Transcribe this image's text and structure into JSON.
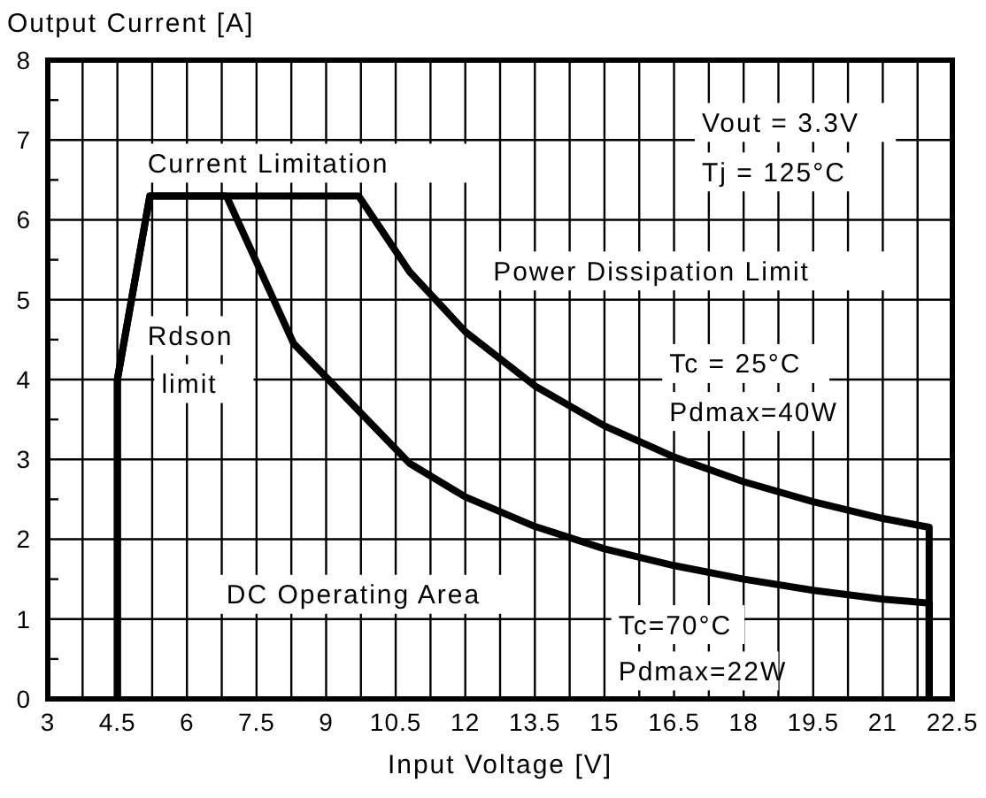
{
  "chart_data": {
    "type": "line",
    "title": "Output Current [A]",
    "xlabel": "Input Voltage [V]",
    "xlim": [
      3,
      22.5
    ],
    "ylim": [
      0,
      8
    ],
    "xticks": [
      3,
      {
        "value": 3.75,
        "label": null
      },
      4.5,
      {
        "value": 5.25,
        "label": null
      },
      6,
      {
        "value": 6.75,
        "label": null
      },
      7.5,
      {
        "value": 8.25,
        "label": null
      },
      9,
      {
        "value": 9.75,
        "label": null
      },
      10.5,
      {
        "value": 11.25,
        "label": null
      },
      12,
      {
        "value": 12.75,
        "label": null
      },
      13.5,
      {
        "value": 14.25,
        "label": null
      },
      15,
      {
        "value": 15.75,
        "label": null
      },
      16.5,
      {
        "value": 17.25,
        "label": null
      },
      18,
      {
        "value": 18.75,
        "label": null
      },
      19.5,
      {
        "value": 20.25,
        "label": null
      },
      21,
      {
        "value": 21.75,
        "label": null
      },
      22.5
    ],
    "yticks": [
      0,
      {
        "value": 0.5,
        "label": null
      },
      1,
      {
        "value": 1.5,
        "label": null
      },
      2,
      {
        "value": 2.5,
        "label": null
      },
      3,
      {
        "value": 3.5,
        "label": null
      },
      4,
      {
        "value": 4.5,
        "label": null
      },
      5,
      {
        "value": 5.5,
        "label": null
      },
      6,
      {
        "value": 6.5,
        "label": null
      },
      7,
      {
        "value": 7.5,
        "label": null
      },
      8
    ],
    "grid": true,
    "line_style": "solid",
    "series": [
      {
        "color": "#000000",
        "x": [
          4.5,
          4.5,
          5.2,
          9.7,
          10.8,
          12,
          13.5,
          15,
          16.5,
          18,
          19.5,
          21,
          22,
          22
        ],
        "values": [
          0,
          4,
          6.3,
          6.3,
          5.35,
          4.6,
          3.92,
          3.42,
          3.03,
          2.72,
          2.47,
          2.26,
          2.15,
          0
        ]
      },
      {
        "color": "#000000",
        "x": [
          4.5,
          4.5,
          5.2,
          6.85,
          8.3,
          10.8,
          12,
          13.5,
          15,
          16.5,
          18,
          19.5,
          21,
          22,
          22
        ],
        "values": [
          0,
          4,
          6.3,
          6.3,
          4.45,
          2.95,
          2.53,
          2.16,
          1.88,
          1.67,
          1.5,
          1.36,
          1.25,
          1.2,
          0
        ]
      }
    ],
    "annotations": [
      "Current  Limitation",
      "Vout = 3.3V\nTj = 125°C",
      "Power Dissipation Limit",
      "Tc = 25°C\nPdmax=40W",
      "Rdson\nlimit",
      "DC Operating Area",
      "Tc=70°C\nPdmax=22W"
    ]
  }
}
